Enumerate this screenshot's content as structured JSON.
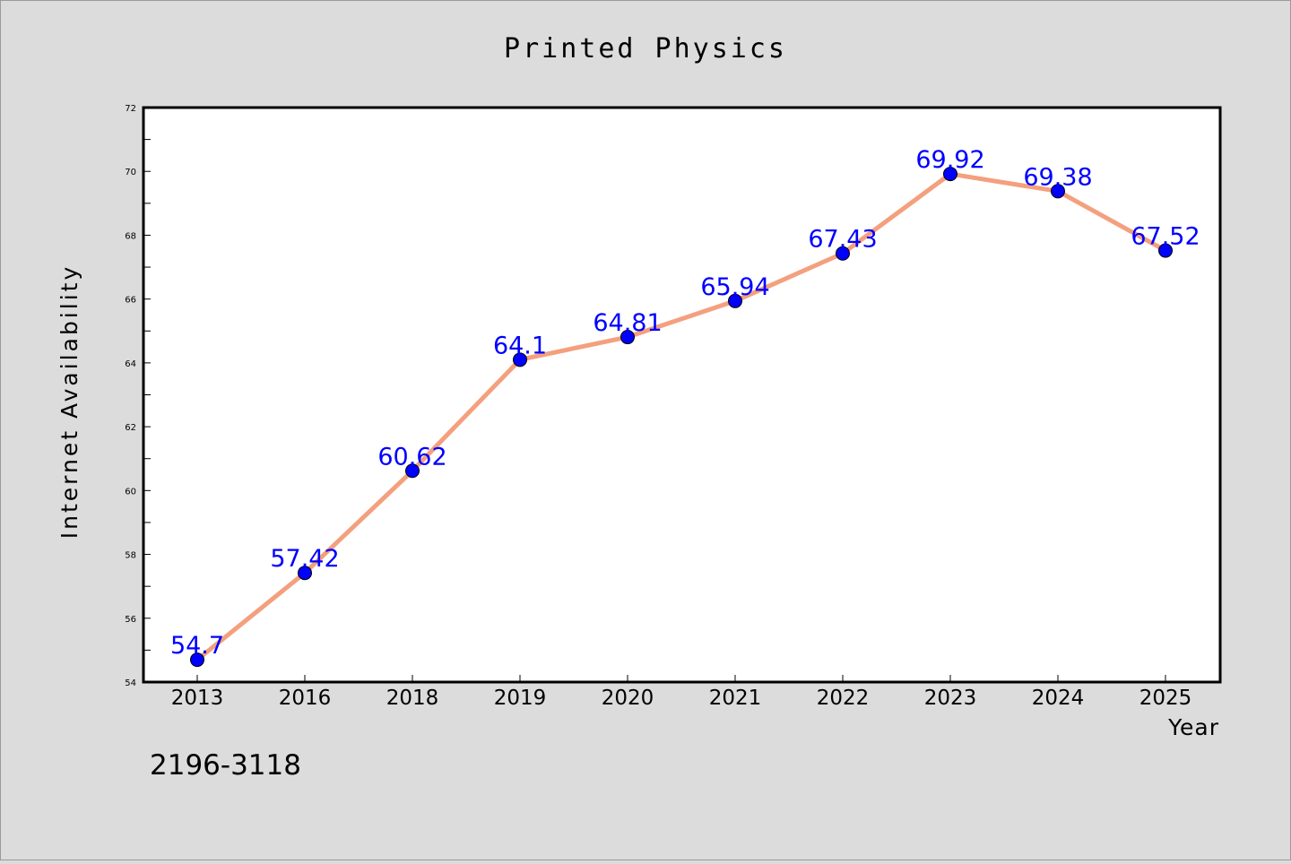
{
  "chart_data": {
    "type": "line",
    "title": "Printed Physics",
    "xlabel": "Year",
    "ylabel": "Internet Availability",
    "categories": [
      "2013",
      "2016",
      "2018",
      "2019",
      "2020",
      "2021",
      "2022",
      "2023",
      "2024",
      "2025"
    ],
    "series": [
      {
        "values": [
          54.7,
          57.42,
          60.62,
          64.1,
          64.81,
          65.94,
          67.43,
          69.92,
          69.38,
          67.52
        ],
        "line_color": "#f4a07e",
        "marker_color": "#0000ff",
        "label_color": "#0000ff"
      }
    ],
    "data_labels": [
      "54.7",
      "57.42",
      "60.62",
      "64.1",
      "64.81",
      "65.94",
      "67.43",
      "69.92",
      "69.38",
      "67.52"
    ],
    "ylim": [
      54,
      72
    ],
    "yticks": [
      "54",
      "56",
      "58",
      "60",
      "62",
      "64",
      "66",
      "68",
      "70",
      "72"
    ],
    "grid": false,
    "annotation": "2196-3118",
    "background": "#dcdcdc",
    "plot_background": "#ffffff"
  }
}
